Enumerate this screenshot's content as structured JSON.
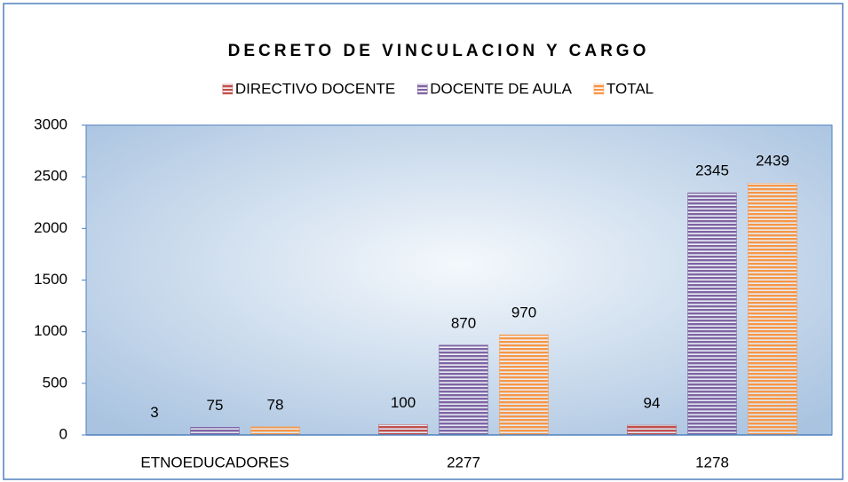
{
  "chart_data": {
    "type": "bar",
    "title": "DECRETO DE VINCULACION Y CARGO",
    "categories": [
      "ETNOEDUCADORES",
      "2277",
      "1278"
    ],
    "series": [
      {
        "name": "DIRECTIVO DOCENTE",
        "color": "#c0504d",
        "values": [
          3,
          100,
          94
        ]
      },
      {
        "name": "DOCENTE DE AULA",
        "color": "#8064a2",
        "values": [
          75,
          870,
          2345
        ]
      },
      {
        "name": "TOTAL",
        "color": "#f79646",
        "values": [
          78,
          970,
          2439
        ]
      }
    ],
    "ylim": [
      0,
      3000
    ],
    "yticks": [
      0,
      500,
      1000,
      1500,
      2000,
      2500,
      3000
    ],
    "legend": "top"
  }
}
